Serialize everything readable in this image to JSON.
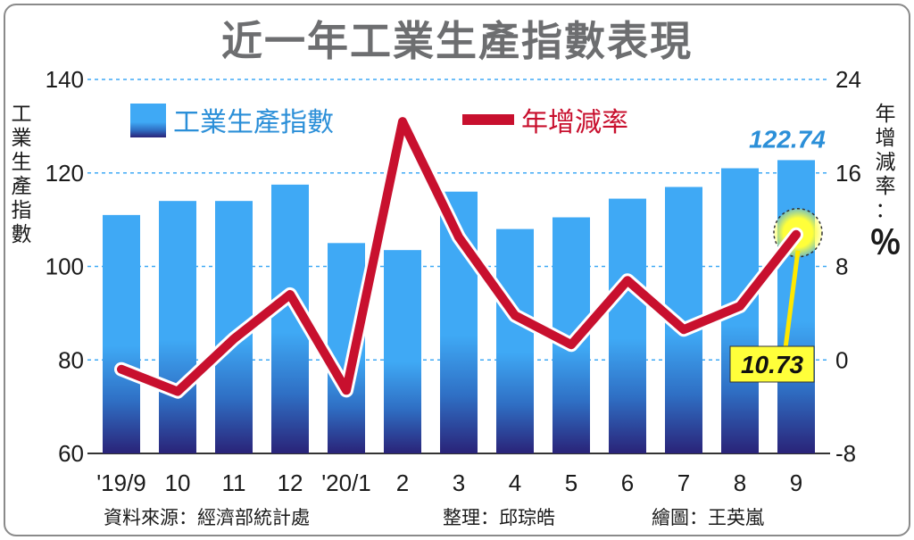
{
  "chart_data": {
    "type": "bar",
    "title": "近一年工業生產指數表現",
    "categories": [
      "'19/9",
      "10",
      "11",
      "12",
      "'20/1",
      "2",
      "3",
      "4",
      "5",
      "6",
      "7",
      "8",
      "9"
    ],
    "series": [
      {
        "name": "工業生產指數",
        "type": "bar",
        "axis": "left",
        "color": "#3fa9f5",
        "values": [
          111,
          114,
          114,
          117.5,
          105,
          103.5,
          116,
          108,
          110.5,
          114.5,
          117,
          121,
          122.74
        ]
      },
      {
        "name": "年增減率",
        "type": "line",
        "axis": "right",
        "color": "#c8102e",
        "values": [
          -0.8,
          -2.7,
          1.8,
          5.6,
          -2.6,
          20.4,
          10.5,
          3.8,
          1.3,
          6.8,
          2.6,
          4.6,
          10.73
        ]
      }
    ],
    "ylabel_left": "工業生產指數",
    "ylabel_right": "年增減率：％",
    "yticks_left": [
      "140",
      "120",
      "100",
      "80",
      "60"
    ],
    "yticks_right": [
      "24",
      "16",
      "8",
      "0",
      "-8"
    ],
    "ylim_left": [
      60,
      140
    ],
    "ylim_right": [
      -8,
      24
    ],
    "annotations": {
      "last_bar": "122.74",
      "last_line": "10.73"
    },
    "grid": "dashed horizontal",
    "legend_position": "top"
  },
  "footer": {
    "source": "資料來源：經濟部統計處",
    "editor": "整理：邱琮皓",
    "illustrator": "繪圖：王英嵐"
  }
}
